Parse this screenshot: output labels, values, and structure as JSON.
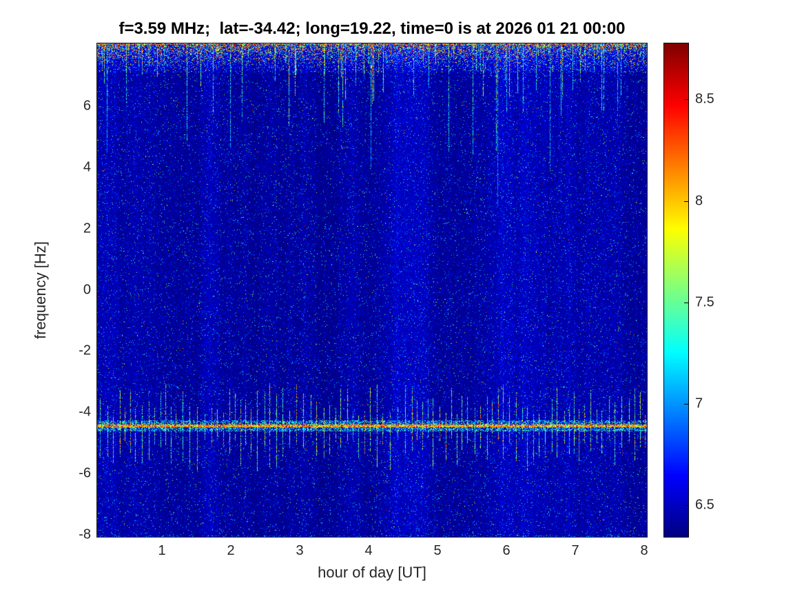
{
  "chart_data": {
    "type": "heatmap",
    "title": "f=3.59 MHz;  lat=-34.42; long=19.22, time=0 is at 2026 01 21 00:00",
    "xlabel": "hour of day [UT]",
    "ylabel": "frequency [Hz]",
    "xlim": [
      0.05,
      8.05
    ],
    "ylim": [
      -8.1,
      8.08
    ],
    "xticks": [
      1,
      2,
      3,
      4,
      5,
      6,
      7,
      8
    ],
    "yticks": [
      6,
      4,
      2,
      0,
      -2,
      -4,
      -6,
      -8
    ],
    "grid": false,
    "colorbar": {
      "min": 6.34,
      "max": 8.78,
      "ticks": [
        8.5,
        8,
        7.5,
        7,
        6.5
      ],
      "colormap": "jet",
      "position": "right"
    },
    "noise_floor": {
      "mean": 6.33,
      "exp_scale": 0.11,
      "speckle_prob": 0.018,
      "bright_speckle_prob": 0.0025
    },
    "features": [
      {
        "name": "top-speckle-band",
        "kind": "horizontal-band",
        "y_range": [
          7.1,
          8.08
        ],
        "description": "dense multicolor speckle noise along top edge"
      },
      {
        "name": "top-vertical-streaks",
        "kind": "vertical-streaks",
        "y_range": [
          5.0,
          8.08
        ],
        "streak_prob": 0.1,
        "description": "thin colored streaks descending from top edge"
      },
      {
        "name": "interference-line",
        "kind": "horizontal-line",
        "y_center": -4.45,
        "half_width_hz": 0.038,
        "fringe_hz": 0.17,
        "peak_level": 8.5,
        "description": "bright red/orange dashed interference line"
      },
      {
        "name": "interference-ticks",
        "kind": "vertical-dashes",
        "y_range": [
          -5.6,
          -3.1
        ],
        "spacing_px": 9,
        "description": "regular vertical dashes crossing the interference line"
      },
      {
        "name": "column-striping",
        "kind": "vertical-stripes",
        "amplitude": 0.1,
        "description": "faint brightness variation between columns"
      },
      {
        "name": "bottom-edge-speckle",
        "kind": "horizontal-band",
        "y_range": [
          -8.1,
          -8.0
        ],
        "description": "sparse cyan speckles along bottom edge"
      }
    ],
    "render_seed": 1357
  }
}
